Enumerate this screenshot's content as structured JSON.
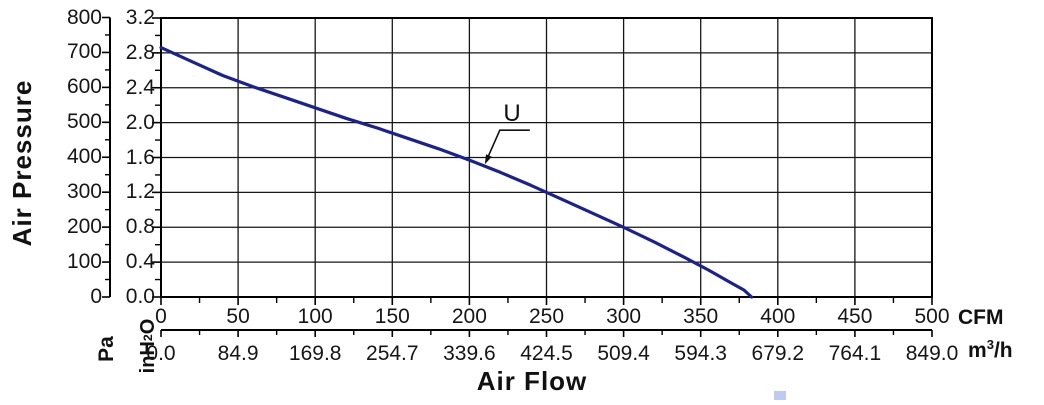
{
  "chart_data": {
    "type": "line",
    "title": "",
    "xlabel": "Air Flow",
    "ylabel": "Air Pressure",
    "grid": true,
    "legend": "none",
    "annotation": {
      "label": "U",
      "points_at_cfm": 210
    },
    "colors": {
      "curve": "#1b2290",
      "grid": "#161616",
      "frame": "#000000",
      "artifact": "#b4c1ef"
    },
    "y_axes": [
      {
        "unit": "Pa",
        "range": [
          0,
          800
        ],
        "tick_labels": [
          "800",
          "700",
          "600",
          "500",
          "400",
          "300",
          "200",
          "100",
          "0"
        ]
      },
      {
        "unit": "inH2O",
        "range": [
          0,
          3.2
        ],
        "tick_labels": [
          "3.2",
          "2.8",
          "2.4",
          "2.0",
          "1.6",
          "1.2",
          "0.8",
          "0.4",
          "0.0"
        ]
      }
    ],
    "x_axes": [
      {
        "unit": "CFM",
        "range": [
          0,
          500
        ],
        "tick_labels": [
          "0",
          "50",
          "100",
          "150",
          "200",
          "250",
          "300",
          "350",
          "400",
          "450",
          "500"
        ]
      },
      {
        "unit": "m3/h",
        "range": [
          0,
          849.0
        ],
        "tick_labels": [
          "0.0",
          "84.9",
          "169.8",
          "254.7",
          "339.6",
          "424.5",
          "509.4",
          "594.3",
          "679.2",
          "764.1",
          "849.0"
        ]
      }
    ],
    "series": [
      {
        "name": "U",
        "x_unit": "CFM",
        "y_unit": "inH2O",
        "points": [
          [
            0,
            2.86
          ],
          [
            20,
            2.7
          ],
          [
            40,
            2.54
          ],
          [
            60,
            2.41
          ],
          [
            80,
            2.29
          ],
          [
            100,
            2.17
          ],
          [
            120,
            2.05
          ],
          [
            140,
            1.94
          ],
          [
            160,
            1.82
          ],
          [
            180,
            1.7
          ],
          [
            200,
            1.57
          ],
          [
            220,
            1.43
          ],
          [
            240,
            1.28
          ],
          [
            260,
            1.12
          ],
          [
            280,
            0.96
          ],
          [
            300,
            0.8
          ],
          [
            320,
            0.63
          ],
          [
            340,
            0.45
          ],
          [
            355,
            0.31
          ],
          [
            370,
            0.16
          ],
          [
            378,
            0.08
          ],
          [
            383,
            0.0
          ]
        ]
      }
    ]
  },
  "titles": {
    "y": "Air Pressure",
    "x": "Air Flow"
  },
  "units": {
    "pa": "Pa",
    "inh2o": {
      "base": "inH",
      "sub": "2",
      "tail": "O"
    },
    "cfm": "CFM",
    "m3h": {
      "base": "m",
      "sup": "3",
      "tail": "/h"
    }
  },
  "annotation_label": "U"
}
